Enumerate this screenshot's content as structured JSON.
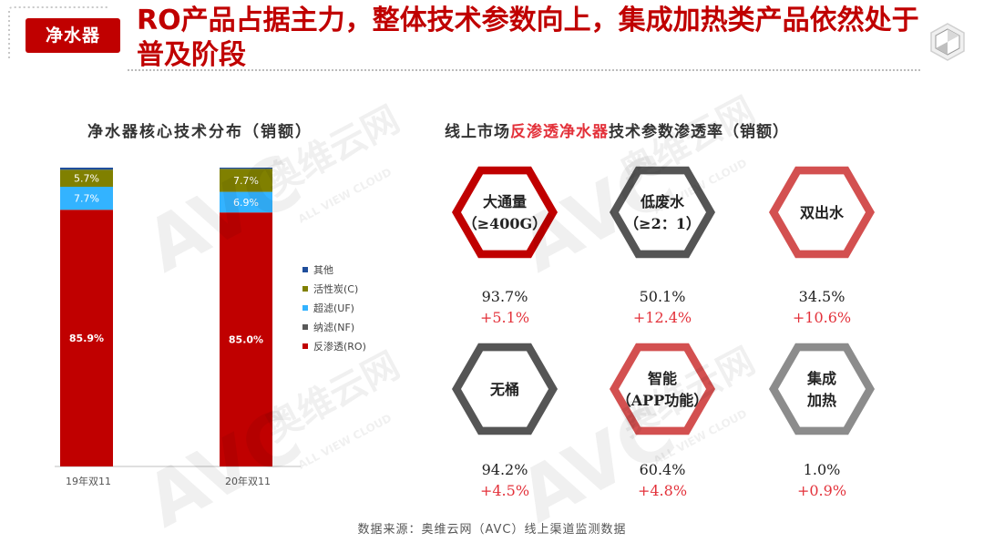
{
  "header": {
    "section_tag": "净水器",
    "headline": "RO产品占据主力，整体技术参数向上，集成加热类产品依然处于普及阶段"
  },
  "colors": {
    "brand_red": "#c00000",
    "hex_red": "#c00000",
    "hex_dark": "#555555",
    "hex_light_red": "#d35050",
    "hex_gray": "#8c8c8c",
    "increase_red": "#e3313a"
  },
  "left_chart": {
    "title": "净水器核心技术分布（销额）"
  },
  "right_panel": {
    "title_prefix": "线上市场",
    "title_highlight": "反渗透净水器",
    "title_suffix": "技术参数渗透率（销额）",
    "items": [
      {
        "label_lines": [
          "大通量",
          "（≥400G）"
        ],
        "rate": "93.7%",
        "change": "+5.1%",
        "style": "red"
      },
      {
        "label_lines": [
          "低废水",
          "（≥2：1）"
        ],
        "rate": "50.1%",
        "change": "+12.4%",
        "style": "dark"
      },
      {
        "label_lines": [
          "双出水"
        ],
        "rate": "34.5%",
        "change": "+10.6%",
        "style": "light_red"
      },
      {
        "label_lines": [
          "无桶"
        ],
        "rate": "94.2%",
        "change": "+4.5%",
        "style": "dark"
      },
      {
        "label_lines": [
          "智能",
          "（APP功能）"
        ],
        "rate": "60.4%",
        "change": "+4.8%",
        "style": "light_red"
      },
      {
        "label_lines": [
          "集成",
          "加热"
        ],
        "rate": "1.0%",
        "change": "+0.9%",
        "style": "gray"
      }
    ]
  },
  "chart_data": {
    "type": "bar",
    "stacked": true,
    "normalized_percent": true,
    "categories": [
      "19年双11",
      "20年双11"
    ],
    "series": [
      {
        "name": "反渗透(RO)",
        "color": "#c00000",
        "values": [
          85.9,
          85.0
        ],
        "labels": [
          "85.9%",
          "85.0%"
        ]
      },
      {
        "name": "纳滤(NF)",
        "color": "#595959",
        "values": [
          0.0,
          0.0
        ],
        "labels": [
          "",
          ""
        ]
      },
      {
        "name": "超滤(UF)",
        "color": "#33b3ff",
        "values": [
          7.7,
          6.9
        ],
        "labels": [
          "7.7%",
          "6.9%"
        ]
      },
      {
        "name": "活性炭(C)",
        "color": "#808000",
        "values": [
          5.7,
          7.7
        ],
        "labels": [
          "5.7%",
          "7.7%"
        ]
      },
      {
        "name": "其他",
        "color": "#1f4e9b",
        "values": [
          0.7,
          0.4
        ],
        "labels": [
          "",
          ""
        ]
      }
    ],
    "legend_order": [
      "其他",
      "活性炭(C)",
      "超滤(UF)",
      "纳滤(NF)",
      "反渗透(RO)"
    ],
    "legend_position": "right",
    "ylim": [
      0,
      100
    ],
    "grid": false
  },
  "footer": {
    "source": "数据来源：奥维云网（AVC）线上渠道监测数据"
  }
}
